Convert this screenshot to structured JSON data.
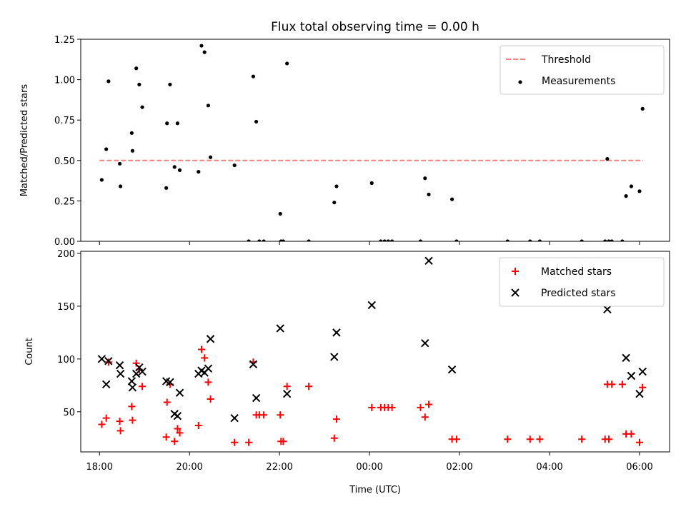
{
  "title": "Flux total observing time = 0.00 h",
  "xlabel": "Time (UTC)",
  "colors": {
    "threshold": "#ff7f7f",
    "measurement": "#000000",
    "matched": "#ff0000",
    "predicted": "#000000"
  },
  "chart_data": [
    {
      "type": "scatter",
      "ylabel": "Matched/Predicted stars",
      "xlim": [
        "17:35",
        "06:40"
      ],
      "ylim": [
        0,
        1.25
      ],
      "yticks": [
        0.0,
        0.25,
        0.5,
        0.75,
        1.0,
        1.25
      ],
      "ytick_labels": [
        "0.00",
        "0.25",
        "0.50",
        "0.75",
        "1.00",
        "1.25"
      ],
      "legend_position": "upper right",
      "threshold": {
        "name": "Threshold",
        "value": 0.5,
        "x": [
          "18:00",
          "06:05"
        ],
        "style": "dashed"
      },
      "series": [
        {
          "name": "Measurements",
          "marker": "dot",
          "points": [
            [
              "18:03",
              0.38
            ],
            [
              "18:09",
              0.57
            ],
            [
              "18:12",
              0.99
            ],
            [
              "18:27",
              0.48
            ],
            [
              "18:28",
              0.34
            ],
            [
              "18:43",
              0.67
            ],
            [
              "18:44",
              0.56
            ],
            [
              "18:49",
              1.07
            ],
            [
              "18:53",
              0.97
            ],
            [
              "18:57",
              0.83
            ],
            [
              "19:29",
              0.33
            ],
            [
              "19:30",
              0.73
            ],
            [
              "19:34",
              0.97
            ],
            [
              "19:40",
              0.46
            ],
            [
              "19:44",
              0.73
            ],
            [
              "19:47",
              0.44
            ],
            [
              "20:12",
              0.43
            ],
            [
              "20:16",
              1.21
            ],
            [
              "20:20",
              1.17
            ],
            [
              "20:25",
              0.84
            ],
            [
              "20:28",
              0.52
            ],
            [
              "21:00",
              0.47
            ],
            [
              "21:19",
              0.0
            ],
            [
              "21:25",
              1.02
            ],
            [
              "21:29",
              0.74
            ],
            [
              "21:33",
              0.0
            ],
            [
              "21:39",
              0.0
            ],
            [
              "22:01",
              0.17
            ],
            [
              "22:02",
              0.0
            ],
            [
              "22:05",
              0.0
            ],
            [
              "22:10",
              1.1
            ],
            [
              "22:39",
              0.0
            ],
            [
              "23:13",
              0.24
            ],
            [
              "23:16",
              0.34
            ],
            [
              "00:03",
              0.36
            ],
            [
              "00:15",
              0.0
            ],
            [
              "00:20",
              0.0
            ],
            [
              "00:25",
              0.0
            ],
            [
              "00:30",
              0.0
            ],
            [
              "01:08",
              0.0
            ],
            [
              "01:14",
              0.39
            ],
            [
              "01:19",
              0.29
            ],
            [
              "01:50",
              0.26
            ],
            [
              "01:56",
              0.0
            ],
            [
              "03:04",
              0.0
            ],
            [
              "03:34",
              0.0
            ],
            [
              "03:47",
              0.0
            ],
            [
              "04:43",
              0.0
            ],
            [
              "05:14",
              0.0
            ],
            [
              "05:17",
              0.51
            ],
            [
              "05:19",
              0.0
            ],
            [
              "05:23",
              0.0
            ],
            [
              "05:37",
              0.0
            ],
            [
              "05:42",
              0.28
            ],
            [
              "05:49",
              0.34
            ],
            [
              "06:00",
              0.31
            ],
            [
              "06:04",
              0.82
            ]
          ]
        }
      ]
    },
    {
      "type": "scatter",
      "ylabel": "Count",
      "xlim": [
        "17:35",
        "06:40"
      ],
      "ylim": [
        12,
        202
      ],
      "yticks": [
        50,
        100,
        150,
        200
      ],
      "ytick_labels": [
        "50",
        "100",
        "150",
        "200"
      ],
      "xticks": [
        "18:00",
        "20:00",
        "22:00",
        "00:00",
        "02:00",
        "04:00",
        "06:00"
      ],
      "legend_position": "upper right",
      "series": [
        {
          "name": "Matched stars",
          "marker": "plus",
          "points": [
            [
              "18:03",
              38
            ],
            [
              "18:09",
              44
            ],
            [
              "18:12",
              97
            ],
            [
              "18:27",
              41
            ],
            [
              "18:28",
              32
            ],
            [
              "18:43",
              55
            ],
            [
              "18:44",
              42
            ],
            [
              "18:49",
              96
            ],
            [
              "18:53",
              90
            ],
            [
              "18:57",
              74
            ],
            [
              "19:29",
              26
            ],
            [
              "19:30",
              59
            ],
            [
              "19:34",
              76
            ],
            [
              "19:40",
              22
            ],
            [
              "19:44",
              34
            ],
            [
              "19:47",
              30
            ],
            [
              "20:12",
              37
            ],
            [
              "20:16",
              109
            ],
            [
              "20:20",
              101
            ],
            [
              "20:25",
              78
            ],
            [
              "20:28",
              62
            ],
            [
              "21:00",
              21
            ],
            [
              "21:19",
              21
            ],
            [
              "21:25",
              97
            ],
            [
              "21:29",
              47
            ],
            [
              "21:33",
              47
            ],
            [
              "21:39",
              47
            ],
            [
              "22:01",
              47
            ],
            [
              "22:02",
              22
            ],
            [
              "22:05",
              22
            ],
            [
              "22:10",
              74
            ],
            [
              "22:39",
              74
            ],
            [
              "23:13",
              25
            ],
            [
              "23:16",
              43
            ],
            [
              "00:03",
              54
            ],
            [
              "00:15",
              54
            ],
            [
              "00:20",
              54
            ],
            [
              "00:25",
              54
            ],
            [
              "00:30",
              54
            ],
            [
              "01:08",
              54
            ],
            [
              "01:14",
              45
            ],
            [
              "01:19",
              57
            ],
            [
              "01:50",
              24
            ],
            [
              "01:56",
              24
            ],
            [
              "03:04",
              24
            ],
            [
              "03:34",
              24
            ],
            [
              "03:47",
              24
            ],
            [
              "04:43",
              24
            ],
            [
              "05:14",
              24
            ],
            [
              "05:17",
              76
            ],
            [
              "05:19",
              24
            ],
            [
              "05:23",
              76
            ],
            [
              "05:37",
              76
            ],
            [
              "05:42",
              29
            ],
            [
              "05:49",
              29
            ],
            [
              "06:00",
              21
            ],
            [
              "06:04",
              73
            ]
          ]
        },
        {
          "name": "Predicted stars",
          "marker": "cross",
          "points": [
            [
              "18:03",
              100
            ],
            [
              "18:09",
              76
            ],
            [
              "18:12",
              98
            ],
            [
              "18:27",
              94
            ],
            [
              "18:28",
              86
            ],
            [
              "18:43",
              79
            ],
            [
              "18:44",
              73
            ],
            [
              "18:49",
              86
            ],
            [
              "18:53",
              92
            ],
            [
              "18:57",
              88
            ],
            [
              "19:29",
              79
            ],
            [
              "19:34",
              78
            ],
            [
              "19:40",
              48
            ],
            [
              "19:44",
              46
            ],
            [
              "19:47",
              68
            ],
            [
              "20:12",
              86
            ],
            [
              "20:16",
              89
            ],
            [
              "20:20",
              87
            ],
            [
              "20:25",
              91
            ],
            [
              "20:28",
              119
            ],
            [
              "21:00",
              44
            ],
            [
              "21:25",
              95
            ],
            [
              "21:29",
              63
            ],
            [
              "22:01",
              129
            ],
            [
              "22:10",
              67
            ],
            [
              "23:13",
              102
            ],
            [
              "23:16",
              125
            ],
            [
              "00:03",
              151
            ],
            [
              "01:14",
              115
            ],
            [
              "01:19",
              193
            ],
            [
              "01:50",
              90
            ],
            [
              "05:17",
              147
            ],
            [
              "05:42",
              101
            ],
            [
              "05:49",
              84
            ],
            [
              "06:00",
              67
            ],
            [
              "06:04",
              88
            ]
          ]
        }
      ]
    }
  ]
}
